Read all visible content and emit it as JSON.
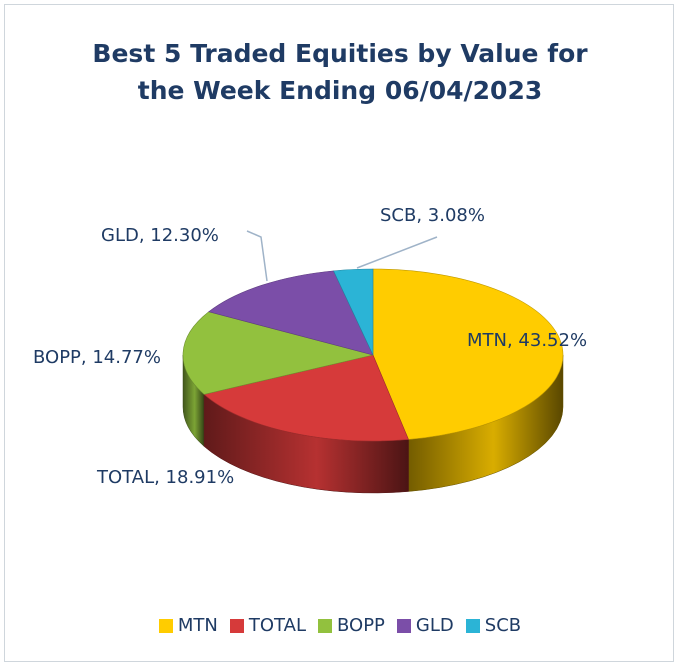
{
  "chart_data": {
    "type": "pie",
    "title_lines": [
      "Best 5 Traded Equities by Value for",
      "the Week Ending 06/04/2023"
    ],
    "categories": [
      "MTN",
      "TOTAL",
      "BOPP",
      "GLD",
      "SCB"
    ],
    "values": [
      43.52,
      18.91,
      14.77,
      12.3,
      3.08
    ],
    "data_labels": [
      "MTN, 43.52%",
      "TOTAL, 18.91%",
      "BOPP, 14.77%",
      "GLD, 12.30%",
      "SCB, 3.08%"
    ],
    "colors": [
      "#FFCC00",
      "#D63A3A",
      "#92C13E",
      "#7B4EA8",
      "#2BB4D6"
    ],
    "legend_position": "bottom",
    "style": "3d"
  }
}
